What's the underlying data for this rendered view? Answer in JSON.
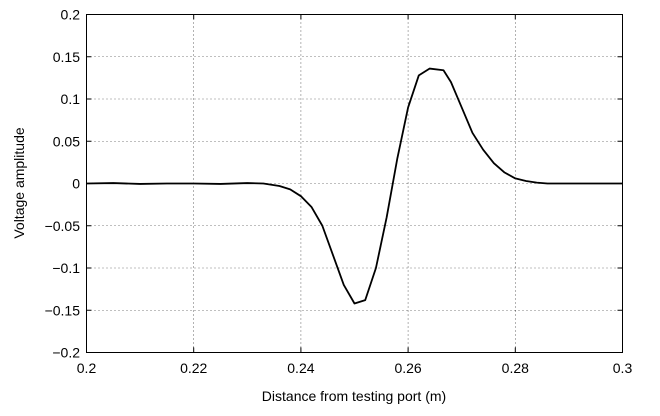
{
  "chart_data": {
    "type": "line",
    "xlabel": "Distance from testing port (m)",
    "ylabel": "Voltage amplitude",
    "xlim": [
      0.2,
      0.3
    ],
    "ylim": [
      -0.2,
      0.2
    ],
    "grid": true,
    "x_ticks": [
      0.2,
      0.22,
      0.24,
      0.26,
      0.28,
      0.3
    ],
    "x_tick_labels": [
      "0.2",
      "0.22",
      "0.24",
      "0.26",
      "0.28",
      "0.3"
    ],
    "y_ticks": [
      0.2,
      0.15,
      0.1,
      0.05,
      0,
      -0.05,
      -0.1,
      -0.15,
      -0.2
    ],
    "y_tick_labels": [
      "0.2",
      "0.15",
      "0.1",
      "0.05",
      "0",
      "−0.05",
      "−0.1",
      "−0.15",
      "−0.2"
    ],
    "series": [
      {
        "color": "#000000",
        "x": [
          0.2,
          0.205,
          0.21,
          0.215,
          0.22,
          0.225,
          0.23,
          0.233,
          0.236,
          0.238,
          0.24,
          0.242,
          0.244,
          0.246,
          0.248,
          0.25,
          0.252,
          0.254,
          0.256,
          0.258,
          0.26,
          0.262,
          0.264,
          0.2666,
          0.268,
          0.27,
          0.272,
          0.274,
          0.276,
          0.278,
          0.28,
          0.282,
          0.284,
          0.286,
          0.288,
          0.29,
          0.295,
          0.3
        ],
        "y": [
          0,
          0.0005,
          -0.0005,
          0,
          0,
          -0.0005,
          0.0005,
          0,
          -0.003,
          -0.007,
          -0.015,
          -0.028,
          -0.05,
          -0.085,
          -0.12,
          -0.142,
          -0.138,
          -0.1,
          -0.04,
          0.03,
          0.09,
          0.128,
          0.136,
          0.134,
          0.12,
          0.09,
          0.06,
          0.04,
          0.024,
          0.013,
          0.006,
          0.003,
          0.001,
          0,
          0,
          0,
          0,
          0
        ]
      }
    ]
  }
}
